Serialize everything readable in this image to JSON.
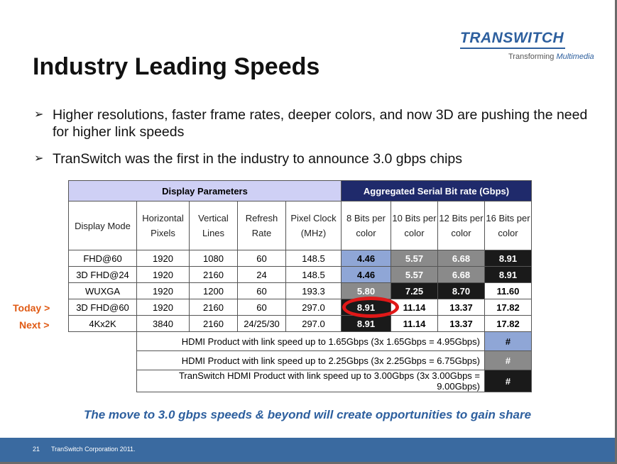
{
  "logo": {
    "word": "TRANSWITCH",
    "sub_prefix": "Transforming ",
    "sub_emph": "Multimedia"
  },
  "title": "Industry Leading Speeds",
  "bullets": [
    "Higher resolutions, faster frame rates, deeper colors, and now 3D are pushing the need for higher link speeds",
    "TranSwitch was the first in the industry to announce 3.0 gbps chips"
  ],
  "table": {
    "group_display": "Display Parameters",
    "group_agg": "Aggregated Serial Bit rate (Gbps)",
    "col_headers": [
      "Display Mode",
      "Horizontal Pixels",
      "Vertical Lines",
      "Refresh Rate",
      "Pixel Clock (MHz)",
      "8 Bits per color",
      "10 Bits per color",
      "12 Bits per color",
      "16 Bits per color"
    ],
    "rows": [
      [
        "FHD@60",
        "1920",
        "1080",
        "60",
        "148.5",
        "4.46",
        "5.57",
        "6.68",
        "8.91"
      ],
      [
        "3D FHD@24",
        "1920",
        "2160",
        "24",
        "148.5",
        "4.46",
        "5.57",
        "6.68",
        "8.91"
      ],
      [
        "WUXGA",
        "1920",
        "1200",
        "60",
        "193.3",
        "5.80",
        "7.25",
        "8.70",
        "11.60"
      ],
      [
        "3D FHD@60",
        "1920",
        "2160",
        "60",
        "297.0",
        "8.91",
        "11.14",
        "13.37",
        "17.82"
      ],
      [
        "4Kx2K",
        "3840",
        "2160",
        "24/25/30",
        "297.0",
        "8.91",
        "11.14",
        "13.37",
        "17.82"
      ]
    ],
    "hdmi_rows": [
      {
        "text": "HDMI Product with link speed up to 1.65Gbps (3x 1.65Gbps = 4.95Gbps)",
        "key": "#"
      },
      {
        "text": "HDMI Product with link speed up to 2.25Gbps (3x 2.25Gbps = 6.75Gbps)",
        "key": "#"
      },
      {
        "text": "TranSwitch HDMI Product with link speed up to 3.00Gbps (3x 3.00Gbps = 9.00Gbps)",
        "key": "#"
      }
    ]
  },
  "row_labels": {
    "today": "Today >",
    "next": "Next >"
  },
  "tagline": "The move to 3.0 gbps speeds & beyond will create opportunities to gain share",
  "footer": {
    "page": "21",
    "text": "TranSwitch Corporation 2011."
  },
  "colors": {
    "accent": "#2d5f9e",
    "footer_bar": "#3a6aa0",
    "highlight_circle": "#e01818",
    "row_label": "#e05a14"
  }
}
